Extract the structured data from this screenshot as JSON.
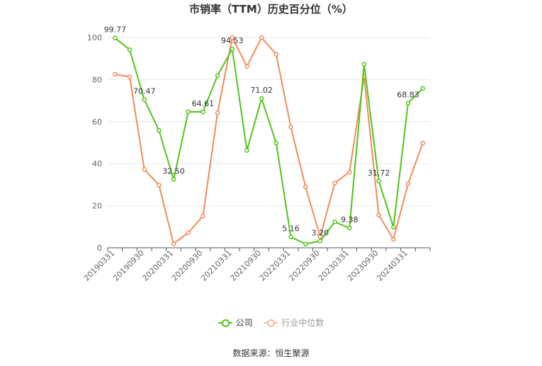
{
  "chart_data": {
    "type": "line",
    "title": "市销率（TTM）历史百分位（%）",
    "ylim": [
      0,
      100
    ],
    "yticks": [
      0,
      20,
      40,
      60,
      80,
      100
    ],
    "grid": true,
    "legend_position": "bottom",
    "x": [
      "20190331",
      "20190630",
      "20190930",
      "20191231",
      "20200331",
      "20200630",
      "20200930",
      "20201231",
      "20210331",
      "20210630",
      "20210930",
      "20211231",
      "20220331",
      "20220630",
      "20220930",
      "20221231",
      "20230331",
      "20230630",
      "20230930",
      "20231231",
      "20240331",
      "20240630"
    ],
    "xtick_labels": [
      "20190331",
      "20190930",
      "20200331",
      "20200930",
      "20210331",
      "20210930",
      "20220331",
      "20220930",
      "20230331",
      "20230930",
      "20240331"
    ],
    "series": [
      {
        "name": "公司",
        "color": "#52c41a",
        "values": [
          99.77,
          94.2,
          70.47,
          55.8,
          32.5,
          64.7,
          64.61,
          81.9,
          94.53,
          46.3,
          71.02,
          49.8,
          5.16,
          1.8,
          3.2,
          12.3,
          9.38,
          87.3,
          31.72,
          9.8,
          68.83,
          75.8
        ],
        "labels": {
          "0": "99.77",
          "2": "70.47",
          "4": "32.50",
          "6": "64.61",
          "8": "94.53",
          "10": "71.02",
          "12": "5.16",
          "14": "3.20",
          "16": "9.38",
          "18": "31.72",
          "20": "68.83"
        }
      },
      {
        "name": "行业中位数",
        "color": "#f08c5a",
        "values": [
          82.5,
          81.3,
          37.3,
          29.8,
          1.9,
          7.2,
          15.1,
          64.2,
          100.0,
          86.3,
          100.0,
          92.0,
          57.4,
          29.0,
          5.3,
          30.8,
          36.0,
          81.5,
          15.6,
          4.0,
          30.4,
          49.8
        ]
      }
    ]
  },
  "legend": {
    "items": [
      {
        "label": "公司",
        "color": "#52c41a"
      },
      {
        "label": "行业中位数",
        "color": "#f5b99a"
      }
    ]
  },
  "source": "数据来源：恒生聚源"
}
